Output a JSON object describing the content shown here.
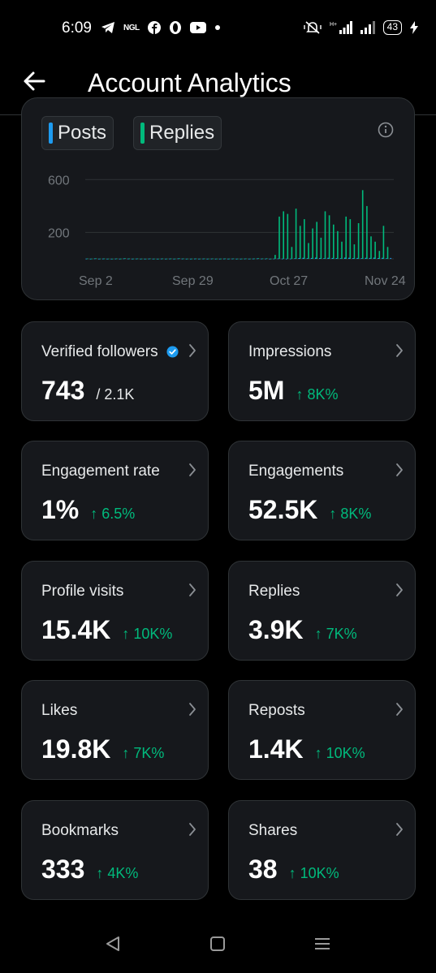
{
  "status_bar": {
    "time": "6:09",
    "left_icons": [
      "telegram-icon",
      "ngl-icon",
      "facebook-icon",
      "opera-icon",
      "youtube-icon",
      "dot-icon"
    ],
    "ngl_text": "NGL",
    "battery": "43"
  },
  "header": {
    "title": "Account Analytics",
    "back_icon": "arrow-left-icon"
  },
  "chart": {
    "legend": [
      {
        "label": "Posts",
        "color": "#1d9bf0"
      },
      {
        "label": "Replies",
        "color": "#00ba7c"
      }
    ],
    "info_icon": "info-icon"
  },
  "chart_data": {
    "type": "bar",
    "x_ticks": [
      "Sep 2",
      "Sep 29",
      "Oct 27",
      "Nov 24"
    ],
    "y_ticks": [
      600,
      200
    ],
    "ylim": [
      0,
      700
    ],
    "grid": true,
    "series": [
      {
        "name": "Posts",
        "color": "#1d9bf0",
        "values": [
          2,
          1,
          3,
          1,
          2,
          1,
          1,
          2,
          1,
          3,
          2,
          1,
          2,
          1,
          1,
          2,
          1,
          1,
          2,
          1,
          2,
          1,
          3,
          2,
          1,
          1,
          2,
          1,
          2,
          1,
          2,
          1,
          1,
          2,
          1,
          2,
          1,
          1,
          2,
          1,
          2,
          3,
          2,
          2,
          1,
          2,
          3,
          2,
          1,
          2,
          4,
          6,
          8,
          5,
          7,
          9,
          6,
          5,
          8,
          7,
          6,
          5,
          9,
          8,
          6,
          7,
          5,
          8,
          7,
          9,
          6,
          8,
          5,
          7
        ]
      },
      {
        "name": "Replies",
        "color": "#00ba7c",
        "values": [
          3,
          2,
          4,
          2,
          3,
          2,
          1,
          3,
          2,
          5,
          3,
          2,
          3,
          2,
          1,
          3,
          2,
          1,
          3,
          2,
          3,
          2,
          4,
          3,
          2,
          2,
          3,
          2,
          3,
          2,
          3,
          2,
          2,
          3,
          2,
          3,
          2,
          2,
          3,
          2,
          3,
          5,
          3,
          4,
          2,
          30,
          320,
          360,
          340,
          90,
          380,
          250,
          300,
          120,
          230,
          280,
          160,
          360,
          330,
          260,
          210,
          130,
          320,
          300,
          110,
          270,
          520,
          400,
          170,
          130,
          60,
          250,
          90,
          0
        ]
      }
    ]
  },
  "cards": [
    {
      "label": "Verified followers",
      "value": "743",
      "sub": "/ 2.1K",
      "delta": "",
      "verified": true
    },
    {
      "label": "Impressions",
      "value": "5M",
      "sub": "",
      "delta": "↑ 8K%",
      "verified": false
    },
    {
      "label": "Engagement rate",
      "value": "1%",
      "sub": "",
      "delta": "↑ 6.5%",
      "verified": false
    },
    {
      "label": "Engagements",
      "value": "52.5K",
      "sub": "",
      "delta": "↑ 8K%",
      "verified": false
    },
    {
      "label": "Profile visits",
      "value": "15.4K",
      "sub": "",
      "delta": "↑ 10K%",
      "verified": false
    },
    {
      "label": "Replies",
      "value": "3.9K",
      "sub": "",
      "delta": "↑ 7K%",
      "verified": false
    },
    {
      "label": "Likes",
      "value": "19.8K",
      "sub": "",
      "delta": "↑ 7K%",
      "verified": false
    },
    {
      "label": "Reposts",
      "value": "1.4K",
      "sub": "",
      "delta": "↑ 10K%",
      "verified": false
    },
    {
      "label": "Bookmarks",
      "value": "333",
      "sub": "",
      "delta": "↑ 4K%",
      "verified": false
    },
    {
      "label": "Shares",
      "value": "38",
      "sub": "",
      "delta": "↑ 10K%",
      "verified": false
    }
  ],
  "colors": {
    "background": "#000000",
    "card": "#16181c",
    "border": "#2f3336",
    "positive": "#00ba7c",
    "verified": "#1d9bf0"
  },
  "nav": [
    "back-triangle-icon",
    "home-square-icon",
    "recents-menu-icon"
  ]
}
